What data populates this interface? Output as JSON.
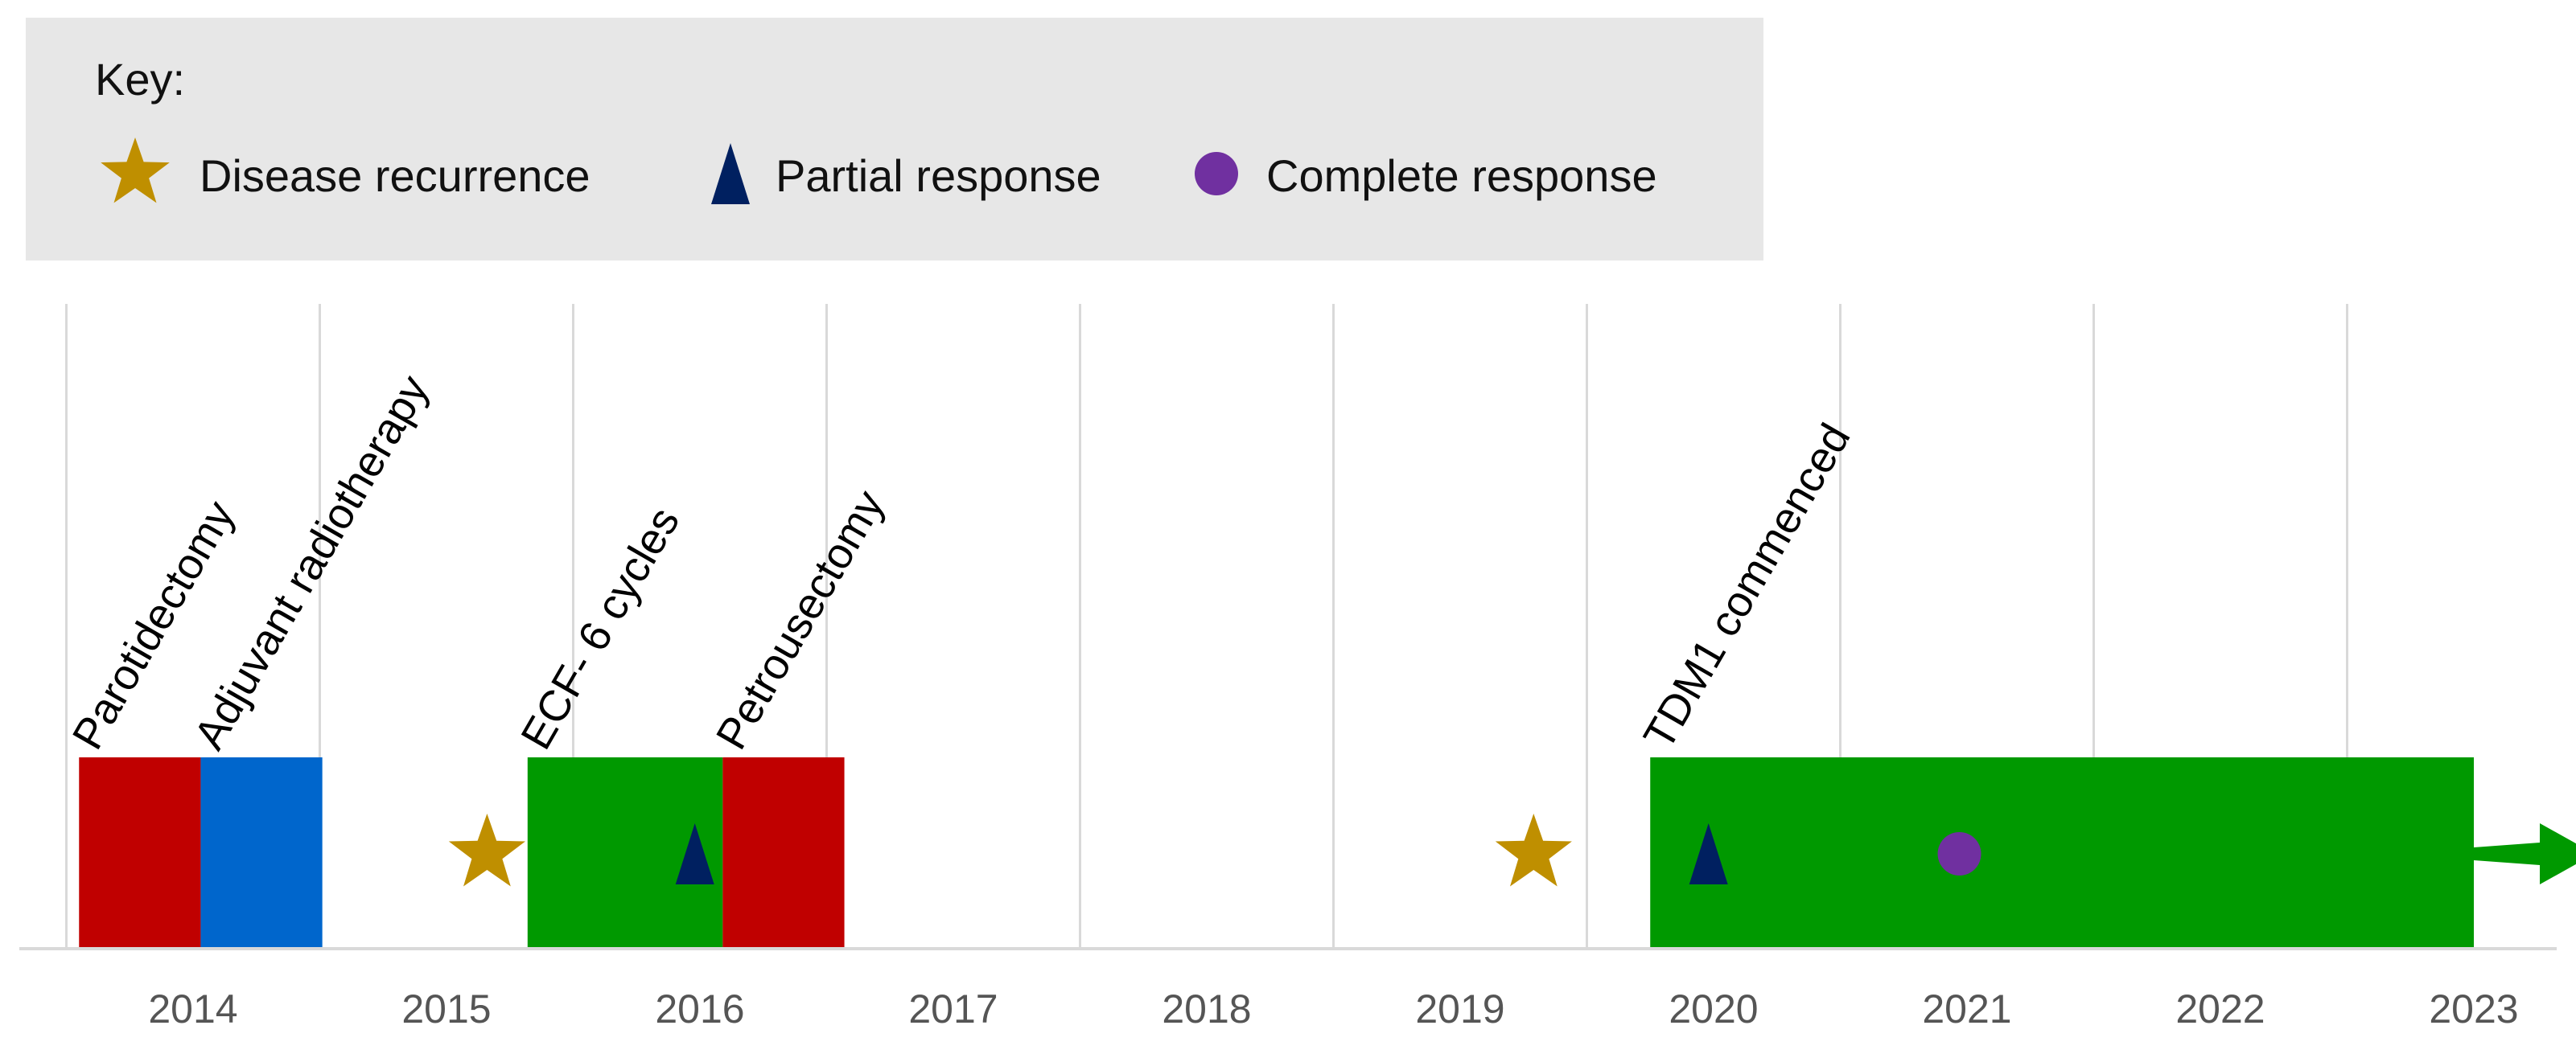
{
  "chart_data": {
    "type": "timeline",
    "title": "",
    "xlabel": "",
    "ylabel": "",
    "x_ticks": [
      "2014",
      "2015",
      "2016",
      "2017",
      "2018",
      "2019",
      "2020",
      "2021",
      "2022",
      "2023"
    ],
    "xlim": [
      2013.4,
      2023.5
    ],
    "grid": true,
    "legend": {
      "title": "Key:",
      "placement": "top-left",
      "entries": [
        {
          "label": "Disease recurrence",
          "marker": "star",
          "color": "#BF8F00"
        },
        {
          "label": "Partial response",
          "marker": "triangle",
          "color": "#002060"
        },
        {
          "label": "Complete response",
          "marker": "circle",
          "color": "#7030A0"
        }
      ]
    },
    "periods": [
      {
        "label": "Parotidectomy",
        "start": 2013.55,
        "end": 2014.03,
        "color": "#C00000"
      },
      {
        "label": "Adjuvant radiotherapy",
        "start": 2014.03,
        "end": 2014.51,
        "color": "#0066CC"
      },
      {
        "label": "ECF- 6 cycles",
        "start": 2015.32,
        "end": 2016.09,
        "color": "#009900"
      },
      {
        "label": "Petrousectomy",
        "start": 2016.09,
        "end": 2016.57,
        "color": "#C00000"
      },
      {
        "label": "TDM1 commenced",
        "start": 2019.75,
        "end": 2023.0,
        "color": "#009900",
        "ongoing": true
      }
    ],
    "events": [
      {
        "type": "Disease recurrence",
        "x": 2015.16
      },
      {
        "type": "Partial response",
        "x": 2015.98
      },
      {
        "type": "Disease recurrence",
        "x": 2019.29
      },
      {
        "type": "Partial response",
        "x": 2019.98
      },
      {
        "type": "Complete response",
        "x": 2020.97
      }
    ]
  }
}
